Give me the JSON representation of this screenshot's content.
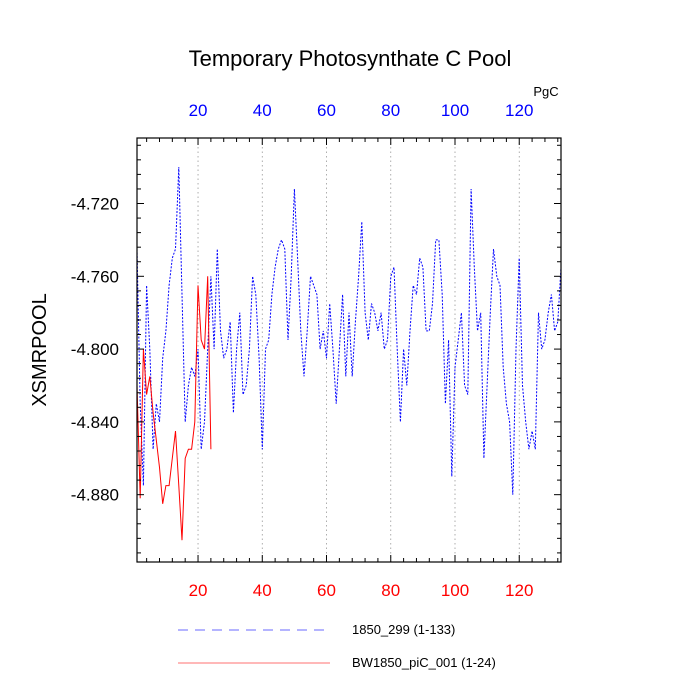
{
  "chart_data": {
    "type": "line",
    "title": "Temporary Photosynthate C Pool",
    "ylabel": "XSMRPOOL",
    "units": "PgC",
    "xlim": [
      1,
      133
    ],
    "ylim": [
      -4.917,
      -4.684
    ],
    "y_ticks": [
      -4.72,
      -4.76,
      -4.8,
      -4.84,
      -4.88
    ],
    "y_tick_labels": [
      "-4.720",
      "-4.760",
      "-4.800",
      "-4.840",
      "-4.880"
    ],
    "x_ticks": [
      20,
      40,
      60,
      80,
      100,
      120
    ],
    "x_tick_labels": [
      "20",
      "40",
      "60",
      "80",
      "100",
      "120"
    ],
    "grid": "vertical dotted at x ticks",
    "legend_position": "bottom",
    "colors": {
      "series1": "#0000ff",
      "series2": "#ff0000",
      "top_axis_labels": "#0000ff",
      "bottom_axis_labels": "#ff0000"
    },
    "series": [
      {
        "name": "1850_299 (1-133)",
        "x_start": 1,
        "style": "dashed",
        "color": "#0000ff",
        "values": [
          -4.745,
          -4.83,
          -4.875,
          -4.765,
          -4.8,
          -4.855,
          -4.83,
          -4.84,
          -4.805,
          -4.79,
          -4.765,
          -4.75,
          -4.745,
          -4.7,
          -4.77,
          -4.84,
          -4.82,
          -4.81,
          -4.815,
          -4.8,
          -4.855,
          -4.84,
          -4.8,
          -4.76,
          -4.8,
          -4.745,
          -4.79,
          -4.805,
          -4.8,
          -4.785,
          -4.835,
          -4.8,
          -4.78,
          -4.825,
          -4.82,
          -4.8,
          -4.76,
          -4.77,
          -4.805,
          -4.855,
          -4.8,
          -4.795,
          -4.77,
          -4.755,
          -4.745,
          -4.74,
          -4.745,
          -4.795,
          -4.76,
          -4.712,
          -4.75,
          -4.79,
          -4.815,
          -4.79,
          -4.76,
          -4.765,
          -4.77,
          -4.8,
          -4.79,
          -4.805,
          -4.775,
          -4.8,
          -4.83,
          -4.8,
          -4.77,
          -4.815,
          -4.78,
          -4.815,
          -4.785,
          -4.76,
          -4.73,
          -4.78,
          -4.795,
          -4.775,
          -4.78,
          -4.79,
          -4.78,
          -4.8,
          -4.795,
          -4.76,
          -4.755,
          -4.8,
          -4.84,
          -4.8,
          -4.82,
          -4.79,
          -4.765,
          -4.77,
          -4.75,
          -4.755,
          -4.79,
          -4.79,
          -4.775,
          -4.74,
          -4.74,
          -4.77,
          -4.83,
          -4.795,
          -4.87,
          -4.81,
          -4.795,
          -4.78,
          -4.82,
          -4.825,
          -4.712,
          -4.755,
          -4.79,
          -4.78,
          -4.86,
          -4.82,
          -4.78,
          -4.745,
          -4.76,
          -4.765,
          -4.81,
          -4.83,
          -4.84,
          -4.88,
          -4.8,
          -4.75,
          -4.82,
          -4.84,
          -4.855,
          -4.845,
          -4.855,
          -4.78,
          -4.8,
          -4.795,
          -4.78,
          -4.77,
          -4.79,
          -4.785,
          -4.755
        ]
      },
      {
        "name": "BW1850_piC_001 (1-24)",
        "x_start": 1,
        "style": "solid",
        "color": "#ff0000",
        "values": [
          -4.82,
          -4.882,
          -4.8,
          -4.825,
          -4.815,
          -4.835,
          -4.85,
          -4.865,
          -4.885,
          -4.875,
          -4.875,
          -4.86,
          -4.845,
          -4.875,
          -4.905,
          -4.86,
          -4.855,
          -4.855,
          -4.84,
          -4.765,
          -4.795,
          -4.8,
          -4.76,
          -4.855
        ]
      }
    ]
  }
}
